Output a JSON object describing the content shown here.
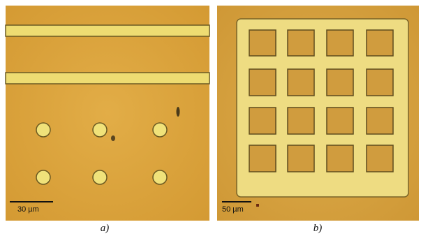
{
  "panels": [
    {
      "scale_label": "30 µm",
      "caption": "a)"
    },
    {
      "scale_label": "50 µm",
      "caption": "b)"
    }
  ]
}
